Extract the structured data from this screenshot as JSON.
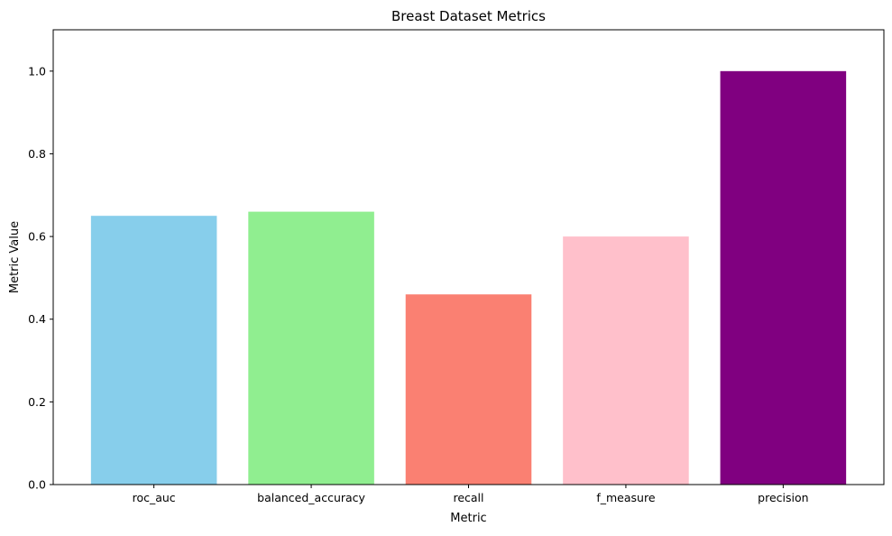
{
  "chart_data": {
    "type": "bar",
    "title": "Breast Dataset Metrics",
    "xlabel": "Metric",
    "ylabel": "Metric Value",
    "categories": [
      "roc_auc",
      "balanced_accuracy",
      "recall",
      "f_measure",
      "precision"
    ],
    "values": [
      0.65,
      0.66,
      0.46,
      0.6,
      1.0
    ],
    "colors": [
      "#87CEEB",
      "#90EE90",
      "#FA8072",
      "#FFC0CB",
      "#800080"
    ],
    "ylim": [
      0,
      1.1
    ],
    "yticks": [
      "0.0",
      "0.2",
      "0.4",
      "0.6",
      "0.8",
      "1.0"
    ],
    "grid": false,
    "legend": false
  }
}
